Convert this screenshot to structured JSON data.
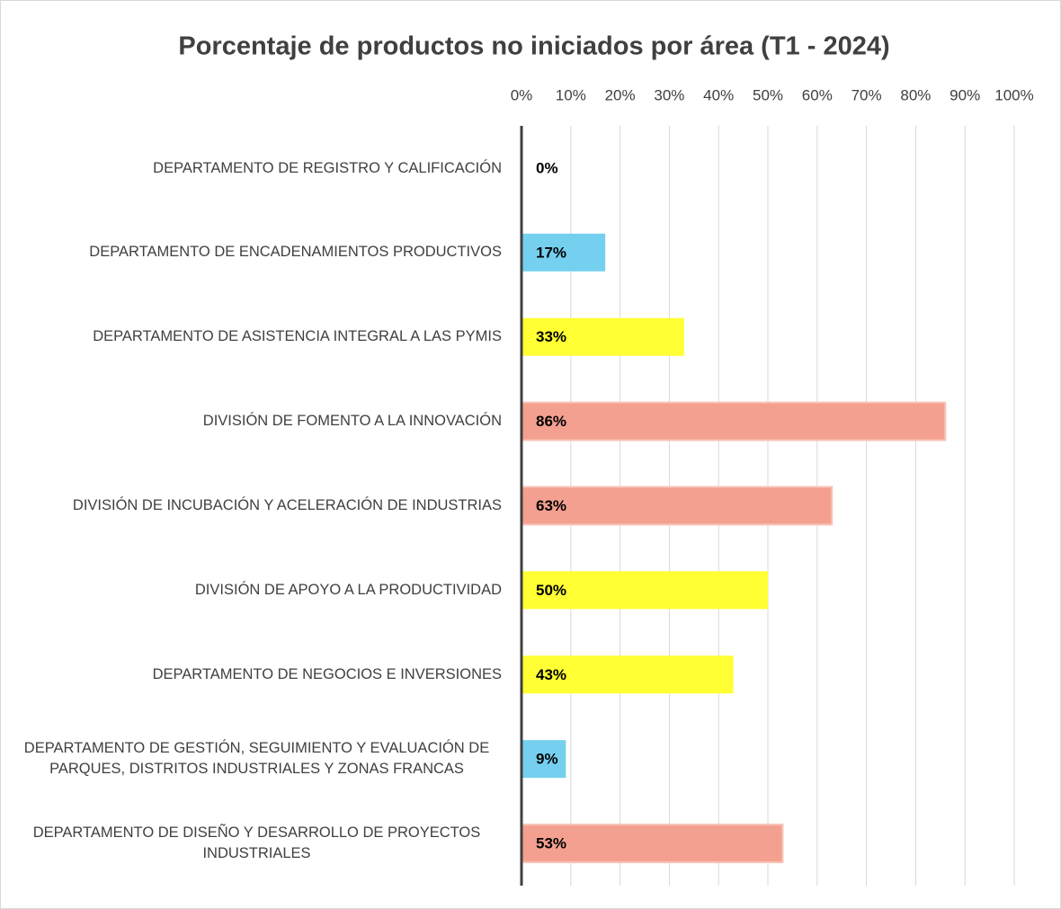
{
  "chart_data": {
    "type": "bar",
    "orientation": "horizontal",
    "title": "Porcentaje de productos no iniciados por área (T1 - 2024)",
    "categories": [
      "DEPARTAMENTO DE REGISTRO Y CALIFICACIÓN",
      "DEPARTAMENTO DE ENCADENAMIENTOS PRODUCTIVOS",
      "DEPARTAMENTO DE ASISTENCIA INTEGRAL A LAS PYMIS",
      "DIVISIÓN DE FOMENTO A LA INNOVACIÓN",
      "DIVISIÓN DE INCUBACIÓN Y ACELERACIÓN DE INDUSTRIAS",
      "DIVISIÓN DE APOYO A LA PRODUCTIVIDAD",
      "DEPARTAMENTO DE NEGOCIOS E INVERSIONES",
      "DEPARTAMENTO DE GESTIÓN, SEGUIMIENTO Y EVALUACIÓN DE PARQUES, DISTRITOS INDUSTRIALES Y ZONAS FRANCAS",
      "DEPARTAMENTO DE DISEÑO Y DESARROLLO DE PROYECTOS INDUSTRIALES"
    ],
    "values": [
      0,
      17,
      33,
      86,
      63,
      50,
      43,
      9,
      53
    ],
    "value_labels": [
      "0%",
      "17%",
      "33%",
      "86%",
      "63%",
      "50%",
      "43%",
      "9%",
      "53%"
    ],
    "colors": [
      "#f4a090",
      "#75d0f0",
      "#ffff33",
      "#f4a090",
      "#f4a090",
      "#ffff33",
      "#ffff33",
      "#75d0f0",
      "#f4a090"
    ],
    "xlim": [
      0,
      100
    ],
    "xticks": [
      {
        "value": 0,
        "label": "0%"
      },
      {
        "value": 10,
        "label": "10%"
      },
      {
        "value": 20,
        "label": "20%"
      },
      {
        "value": 30,
        "label": "30%"
      },
      {
        "value": 40,
        "label": "40%"
      },
      {
        "value": 50,
        "label": "50%"
      },
      {
        "value": 60,
        "label": "60%"
      },
      {
        "value": 70,
        "label": "70%"
      },
      {
        "value": 80,
        "label": "80%"
      },
      {
        "value": 90,
        "label": "90%"
      },
      {
        "value": 100,
        "label": "100%"
      }
    ],
    "grid": true
  }
}
